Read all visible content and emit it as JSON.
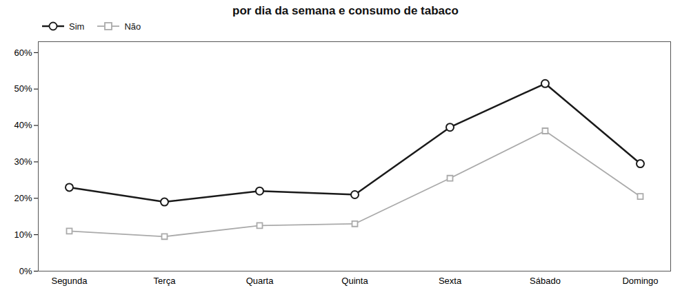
{
  "chart_data": {
    "type": "line",
    "title": "por dia da semana e consumo de tabaco",
    "categories": [
      "Segunda",
      "Terça",
      "Quarta",
      "Quinta",
      "Sexta",
      "Sábado",
      "Domingo"
    ],
    "series": [
      {
        "name": "Sim",
        "color": "#1a1a1a",
        "marker": "circle",
        "values": [
          0.23,
          0.19,
          0.22,
          0.21,
          0.395,
          0.515,
          0.295
        ]
      },
      {
        "name": "Não",
        "color": "#aaaaaa",
        "marker": "square",
        "values": [
          0.11,
          0.095,
          0.125,
          0.13,
          0.255,
          0.385,
          0.205
        ]
      }
    ],
    "ylim": [
      0,
      0.63
    ],
    "yticks": [
      {
        "value": 0.0,
        "label": "0%"
      },
      {
        "value": 0.1,
        "label": "10%"
      },
      {
        "value": 0.2,
        "label": "20%"
      },
      {
        "value": 0.3,
        "label": "30%"
      },
      {
        "value": 0.4,
        "label": "40%"
      },
      {
        "value": 0.5,
        "label": "50%"
      },
      {
        "value": 0.6,
        "label": "60%"
      }
    ],
    "grid": false,
    "legend": "upper left"
  }
}
